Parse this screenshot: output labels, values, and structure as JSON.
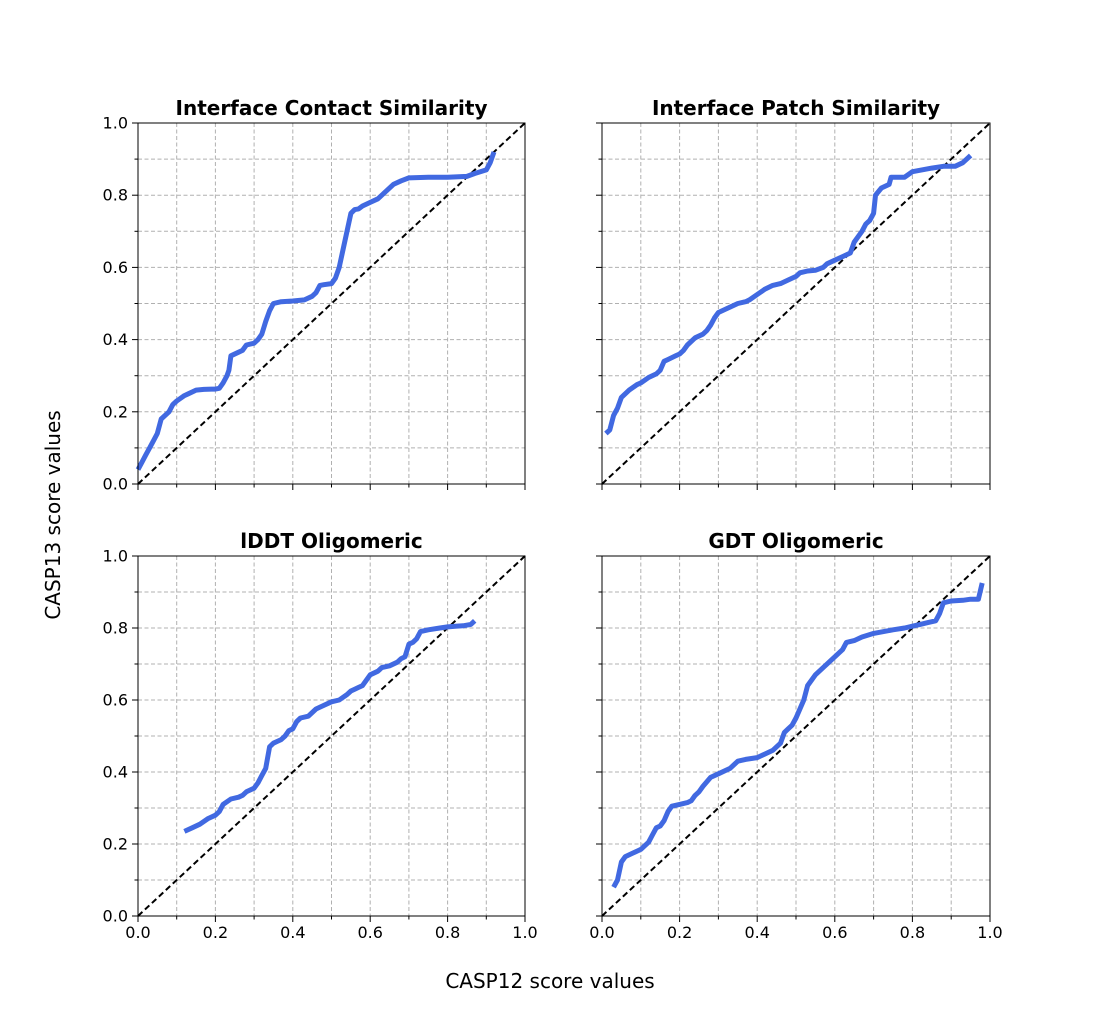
{
  "figure": {
    "xlabel": "CASP12 score values",
    "ylabel": "CASP13 score values",
    "line_color": "#4169e1",
    "diagonal_color": "#000000",
    "grid_color": "#b0b0b0"
  },
  "chart_data": [
    {
      "type": "line",
      "title": "Interface Contact Similarity",
      "xlim": [
        0,
        1
      ],
      "ylim": [
        0,
        1
      ],
      "xticks": [
        "",
        "",
        "",
        "",
        "",
        ""
      ],
      "yticks": [
        "0.0",
        "0.2",
        "0.4",
        "0.6",
        "0.8",
        "1.0"
      ],
      "grid": true,
      "series": [
        {
          "x": [
            0.0,
            0.01,
            0.02,
            0.03,
            0.04,
            0.05,
            0.06,
            0.08,
            0.09,
            0.1,
            0.12,
            0.13,
            0.15,
            0.17,
            0.19,
            0.2,
            0.21,
            0.22,
            0.23,
            0.235,
            0.24,
            0.26,
            0.27,
            0.28,
            0.3,
            0.31,
            0.32,
            0.33,
            0.34,
            0.35,
            0.37,
            0.4,
            0.43,
            0.45,
            0.46,
            0.47,
            0.48,
            0.5,
            0.51,
            0.52,
            0.53,
            0.54,
            0.55,
            0.56,
            0.57,
            0.58,
            0.6,
            0.62,
            0.63,
            0.64,
            0.66,
            0.68,
            0.7,
            0.75,
            0.8,
            0.85,
            0.87,
            0.9,
            0.91,
            0.92
          ],
          "y": [
            0.04,
            0.06,
            0.08,
            0.1,
            0.12,
            0.14,
            0.18,
            0.2,
            0.22,
            0.23,
            0.245,
            0.25,
            0.26,
            0.262,
            0.263,
            0.263,
            0.265,
            0.28,
            0.3,
            0.315,
            0.355,
            0.365,
            0.37,
            0.385,
            0.39,
            0.4,
            0.415,
            0.45,
            0.48,
            0.5,
            0.505,
            0.507,
            0.51,
            0.52,
            0.53,
            0.55,
            0.552,
            0.555,
            0.57,
            0.6,
            0.65,
            0.7,
            0.75,
            0.76,
            0.762,
            0.77,
            0.78,
            0.79,
            0.8,
            0.81,
            0.83,
            0.84,
            0.848,
            0.85,
            0.85,
            0.852,
            0.86,
            0.87,
            0.89,
            0.92
          ]
        }
      ]
    },
    {
      "type": "line",
      "title": "Interface Patch Similarity",
      "xlim": [
        0,
        1
      ],
      "ylim": [
        0,
        1
      ],
      "xticks": [
        "",
        "",
        "",
        "",
        "",
        ""
      ],
      "yticks": [
        "",
        "",
        "",
        "",
        "",
        ""
      ],
      "grid": true,
      "series": [
        {
          "x": [
            0.01,
            0.02,
            0.03,
            0.04,
            0.05,
            0.07,
            0.09,
            0.1,
            0.12,
            0.14,
            0.15,
            0.16,
            0.17,
            0.19,
            0.2,
            0.21,
            0.22,
            0.24,
            0.26,
            0.27,
            0.28,
            0.29,
            0.3,
            0.32,
            0.33,
            0.35,
            0.37,
            0.38,
            0.4,
            0.42,
            0.44,
            0.46,
            0.48,
            0.5,
            0.51,
            0.53,
            0.55,
            0.57,
            0.58,
            0.6,
            0.62,
            0.64,
            0.645,
            0.65,
            0.66,
            0.67,
            0.68,
            0.69,
            0.7,
            0.705,
            0.72,
            0.74,
            0.745,
            0.78,
            0.8,
            0.85,
            0.88,
            0.91,
            0.93,
            0.95
          ],
          "y": [
            0.14,
            0.15,
            0.19,
            0.21,
            0.24,
            0.26,
            0.275,
            0.28,
            0.295,
            0.305,
            0.315,
            0.34,
            0.345,
            0.355,
            0.36,
            0.37,
            0.385,
            0.405,
            0.415,
            0.425,
            0.44,
            0.46,
            0.475,
            0.485,
            0.49,
            0.5,
            0.505,
            0.51,
            0.525,
            0.54,
            0.55,
            0.555,
            0.565,
            0.575,
            0.585,
            0.59,
            0.592,
            0.6,
            0.61,
            0.62,
            0.63,
            0.64,
            0.655,
            0.67,
            0.685,
            0.7,
            0.72,
            0.73,
            0.75,
            0.8,
            0.82,
            0.83,
            0.85,
            0.85,
            0.865,
            0.875,
            0.88,
            0.88,
            0.89,
            0.91
          ]
        }
      ]
    },
    {
      "type": "line",
      "title": "lDDT Oligomeric",
      "xlim": [
        0,
        1
      ],
      "ylim": [
        0,
        1
      ],
      "xticks": [
        "0.0",
        "0.2",
        "0.4",
        "0.6",
        "0.8",
        "1.0"
      ],
      "yticks": [
        "0.0",
        "0.2",
        "0.4",
        "0.6",
        "0.8",
        "1.0"
      ],
      "grid": true,
      "series": [
        {
          "x": [
            0.12,
            0.14,
            0.16,
            0.18,
            0.19,
            0.2,
            0.21,
            0.22,
            0.24,
            0.26,
            0.27,
            0.28,
            0.29,
            0.3,
            0.31,
            0.32,
            0.33,
            0.34,
            0.35,
            0.36,
            0.37,
            0.38,
            0.39,
            0.4,
            0.41,
            0.42,
            0.44,
            0.46,
            0.48,
            0.5,
            0.52,
            0.54,
            0.55,
            0.56,
            0.57,
            0.58,
            0.6,
            0.62,
            0.63,
            0.65,
            0.67,
            0.68,
            0.69,
            0.7,
            0.71,
            0.72,
            0.73,
            0.75,
            0.78,
            0.8,
            0.82,
            0.84,
            0.86,
            0.87
          ],
          "y": [
            0.235,
            0.245,
            0.255,
            0.27,
            0.275,
            0.28,
            0.29,
            0.31,
            0.325,
            0.33,
            0.335,
            0.345,
            0.35,
            0.355,
            0.37,
            0.39,
            0.41,
            0.47,
            0.48,
            0.485,
            0.49,
            0.5,
            0.515,
            0.52,
            0.54,
            0.55,
            0.555,
            0.575,
            0.585,
            0.595,
            0.6,
            0.615,
            0.625,
            0.63,
            0.635,
            0.64,
            0.67,
            0.68,
            0.69,
            0.695,
            0.705,
            0.715,
            0.72,
            0.755,
            0.76,
            0.77,
            0.79,
            0.795,
            0.8,
            0.803,
            0.805,
            0.806,
            0.81,
            0.82
          ]
        }
      ]
    },
    {
      "type": "line",
      "title": "GDT Oligomeric",
      "xlim": [
        0,
        1
      ],
      "ylim": [
        0,
        1
      ],
      "xticks": [
        "0.0",
        "0.2",
        "0.4",
        "0.6",
        "0.8",
        "1.0"
      ],
      "yticks": [
        "",
        "",
        "",
        "",
        "",
        ""
      ],
      "grid": true,
      "series": [
        {
          "x": [
            0.03,
            0.04,
            0.05,
            0.06,
            0.08,
            0.1,
            0.12,
            0.13,
            0.14,
            0.15,
            0.16,
            0.17,
            0.18,
            0.2,
            0.22,
            0.23,
            0.24,
            0.25,
            0.26,
            0.28,
            0.3,
            0.33,
            0.35,
            0.37,
            0.4,
            0.42,
            0.44,
            0.46,
            0.47,
            0.48,
            0.49,
            0.5,
            0.51,
            0.52,
            0.53,
            0.55,
            0.57,
            0.59,
            0.61,
            0.62,
            0.63,
            0.65,
            0.67,
            0.7,
            0.75,
            0.78,
            0.8,
            0.82,
            0.84,
            0.86,
            0.87,
            0.88,
            0.9,
            0.93,
            0.95,
            0.97,
            0.98
          ],
          "y": [
            0.08,
            0.1,
            0.15,
            0.165,
            0.175,
            0.185,
            0.205,
            0.225,
            0.245,
            0.25,
            0.265,
            0.29,
            0.305,
            0.31,
            0.315,
            0.32,
            0.335,
            0.345,
            0.36,
            0.385,
            0.395,
            0.41,
            0.43,
            0.435,
            0.44,
            0.45,
            0.46,
            0.48,
            0.51,
            0.52,
            0.53,
            0.55,
            0.575,
            0.6,
            0.64,
            0.67,
            0.69,
            0.71,
            0.73,
            0.74,
            0.76,
            0.765,
            0.775,
            0.785,
            0.795,
            0.8,
            0.805,
            0.81,
            0.815,
            0.82,
            0.84,
            0.87,
            0.875,
            0.877,
            0.88,
            0.88,
            0.925
          ]
        }
      ]
    }
  ]
}
